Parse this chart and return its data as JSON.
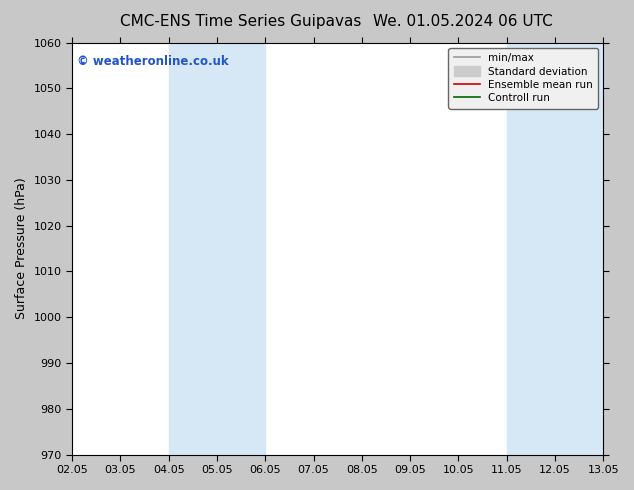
{
  "title_left": "CMC-ENS Time Series Guipavas",
  "title_right": "We. 01.05.2024 06 UTC",
  "ylabel": "Surface Pressure (hPa)",
  "ylim": [
    970,
    1060
  ],
  "yticks": [
    970,
    980,
    990,
    1000,
    1010,
    1020,
    1030,
    1040,
    1050,
    1060
  ],
  "xtick_labels": [
    "02.05",
    "03.05",
    "04.05",
    "05.05",
    "06.05",
    "07.05",
    "08.05",
    "09.05",
    "10.05",
    "11.05",
    "12.05",
    "13.05"
  ],
  "shaded_bands": [
    {
      "xstart": 2,
      "xend": 3,
      "color": "#d6e8f5"
    },
    {
      "xstart": 3,
      "xend": 4,
      "color": "#d6e8f5"
    },
    {
      "xstart": 9,
      "xend": 10,
      "color": "#d6e8f5"
    },
    {
      "xstart": 10,
      "xend": 11,
      "color": "#d6e8f5"
    }
  ],
  "watermark": "© weatheronline.co.uk",
  "watermark_color": "#2255cc",
  "legend_items": [
    {
      "label": "min/max",
      "color": "#999999",
      "lw": 1.2,
      "type": "line"
    },
    {
      "label": "Standard deviation",
      "color": "#cccccc",
      "lw": 8,
      "type": "patch"
    },
    {
      "label": "Ensemble mean run",
      "color": "#cc0000",
      "lw": 1.2,
      "type": "line"
    },
    {
      "label": "Controll run",
      "color": "#006600",
      "lw": 1.2,
      "type": "line"
    }
  ],
  "bg_color": "#c8c8c8",
  "plot_bg_color": "#ffffff",
  "title_fontsize": 11,
  "tick_fontsize": 8,
  "ylabel_fontsize": 9
}
